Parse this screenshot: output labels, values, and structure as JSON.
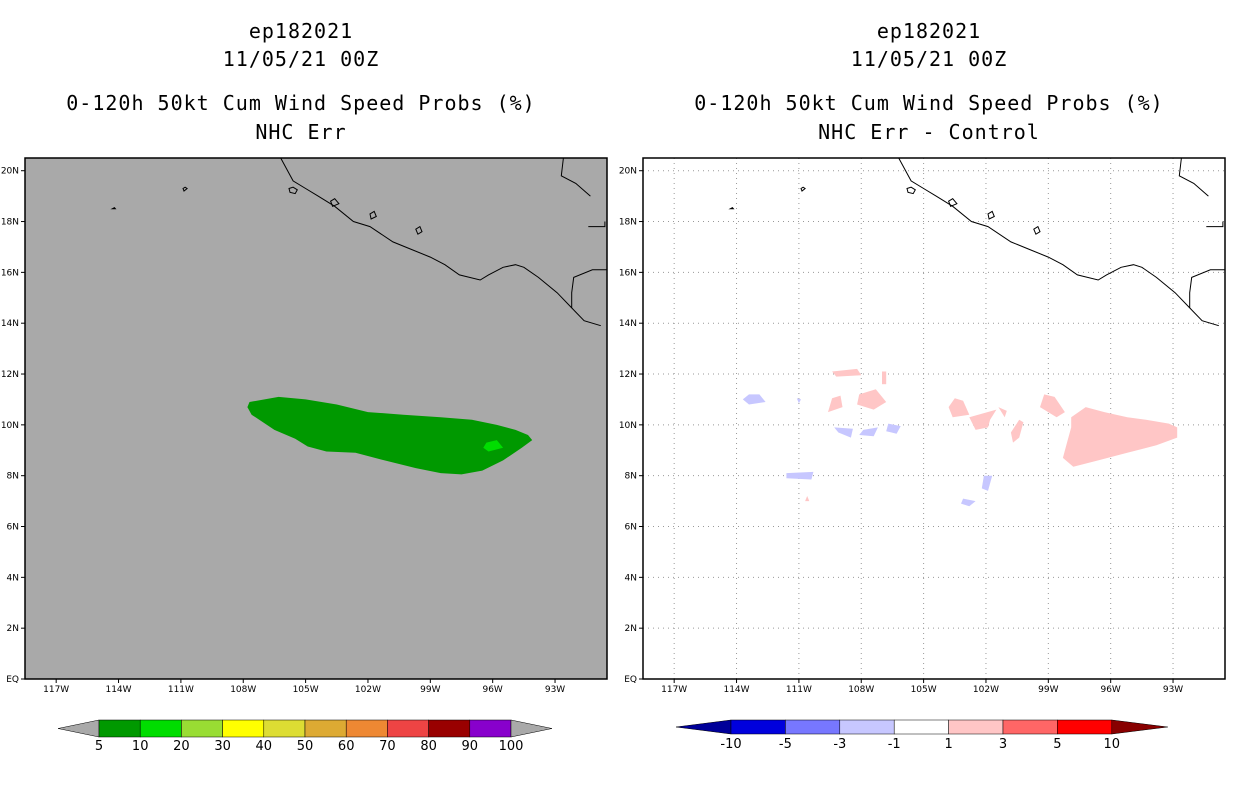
{
  "left_panel": {
    "storm_id": "ep182021",
    "datetime": "11/05/21 00Z",
    "product": "0-120h 50kt Cum Wind Speed Probs (%)",
    "subtitle": "NHC Err"
  },
  "right_panel": {
    "storm_id": "ep182021",
    "datetime": "11/05/21 00Z",
    "product": "0-120h 50kt Cum Wind Speed Probs (%)",
    "subtitle": "NHC Err - Control"
  },
  "map_extent": {
    "lon_west": -118.5,
    "lon_east": -90.5,
    "lat_south": 0,
    "lat_north": 20.5
  },
  "lat_ticks": [
    {
      "value": 0,
      "label": "EQ"
    },
    {
      "value": 2,
      "label": "2N"
    },
    {
      "value": 4,
      "label": "4N"
    },
    {
      "value": 6,
      "label": "6N"
    },
    {
      "value": 8,
      "label": "8N"
    },
    {
      "value": 10,
      "label": "10N"
    },
    {
      "value": 12,
      "label": "12N"
    },
    {
      "value": 14,
      "label": "14N"
    },
    {
      "value": 16,
      "label": "16N"
    },
    {
      "value": 18,
      "label": "18N"
    },
    {
      "value": 20,
      "label": "20N"
    }
  ],
  "lon_ticks": [
    {
      "value": -117,
      "label": "117W"
    },
    {
      "value": -114,
      "label": "114W"
    },
    {
      "value": -111,
      "label": "111W"
    },
    {
      "value": -108,
      "label": "108W"
    },
    {
      "value": -105,
      "label": "105W"
    },
    {
      "value": -102,
      "label": "102W"
    },
    {
      "value": -99,
      "label": "99W"
    },
    {
      "value": -96,
      "label": "96W"
    },
    {
      "value": -93,
      "label": "93W"
    }
  ],
  "colors": {
    "ocean_left": "#a9a9a9",
    "prob_5_10": "#009900",
    "prob_10_20": "#00dd00",
    "diff_pos_1_3": "#ffc6c6",
    "diff_neg_1_3": "#c7c7ff"
  },
  "left_colorbar": {
    "labels": [
      "5",
      "10",
      "20",
      "30",
      "40",
      "50",
      "60",
      "70",
      "80",
      "90",
      "100"
    ],
    "colors": [
      "#009900",
      "#00dd00",
      "#99dd33",
      "#ffff00",
      "#dddd33",
      "#ddaa33",
      "#ee8833",
      "#ee4444",
      "#990000",
      "#8800cc"
    ],
    "end_color": "#a9a9a9"
  },
  "right_colorbar": {
    "labels": [
      "-10",
      "-5",
      "-3",
      "-1",
      "1",
      "3",
      "5",
      "10"
    ],
    "colors": [
      "#0000dd",
      "#7777ff",
      "#c7c7ff",
      "#ffffff",
      "#ffc6c6",
      "#ff6666",
      "#ff0000"
    ],
    "low_color": "#000099",
    "high_color": "#880000"
  },
  "chart_data": {
    "type": "map",
    "variable": "0-120h 50kt cumulative wind speed probability (%)",
    "left_regions": [
      {
        "category": "5-10%",
        "color_key": "prob_5_10",
        "outline": [
          [
            -107.7,
            10.9
          ],
          [
            -106.3,
            11.1
          ],
          [
            -105,
            11
          ],
          [
            -103.5,
            10.8
          ],
          [
            -102,
            10.5
          ],
          [
            -100.3,
            10.4
          ],
          [
            -98.5,
            10.3
          ],
          [
            -97,
            10.2
          ],
          [
            -95.8,
            10
          ],
          [
            -94.9,
            9.8
          ],
          [
            -94.3,
            9.6
          ],
          [
            -94.1,
            9.4
          ],
          [
            -94.6,
            9.1
          ],
          [
            -95.5,
            8.6
          ],
          [
            -96.5,
            8.2
          ],
          [
            -97.5,
            8.05
          ],
          [
            -98.5,
            8.1
          ],
          [
            -99.7,
            8.3
          ],
          [
            -101.2,
            8.6
          ],
          [
            -102.6,
            8.9
          ],
          [
            -104,
            8.95
          ],
          [
            -104.9,
            9.15
          ],
          [
            -105.5,
            9.45
          ],
          [
            -106.5,
            9.8
          ],
          [
            -107.6,
            10.4
          ],
          [
            -107.8,
            10.7
          ]
        ]
      },
      {
        "category": "10-20%",
        "color_key": "prob_10_20",
        "outline": [
          [
            -96.3,
            9.3
          ],
          [
            -95.8,
            9.4
          ],
          [
            -95.5,
            9.1
          ],
          [
            -96.2,
            8.95
          ],
          [
            -96.45,
            9.1
          ]
        ]
      }
    ],
    "right_regions": [
      {
        "category": "+1 to +3",
        "color_key": "diff_pos_1_3",
        "outline": [
          [
            -109.4,
            12.1
          ],
          [
            -108.2,
            12.2
          ],
          [
            -108,
            11.95
          ],
          [
            -109.2,
            11.9
          ]
        ]
      },
      {
        "category": "+1 to +3",
        "color_key": "diff_pos_1_3",
        "outline": [
          [
            -107,
            12.1
          ],
          [
            -106.8,
            12.1
          ],
          [
            -106.8,
            11.6
          ],
          [
            -107,
            11.6
          ]
        ]
      },
      {
        "category": "+1 to +3",
        "color_key": "diff_pos_1_3",
        "outline": [
          [
            -108.1,
            11.2
          ],
          [
            -107.3,
            11.4
          ],
          [
            -106.8,
            10.9
          ],
          [
            -107.4,
            10.6
          ],
          [
            -108.2,
            10.8
          ]
        ]
      },
      {
        "category": "+1 to +3",
        "color_key": "diff_pos_1_3",
        "outline": [
          [
            -109.4,
            11.05
          ],
          [
            -109,
            11.15
          ],
          [
            -108.9,
            10.7
          ],
          [
            -109.6,
            10.5
          ]
        ]
      },
      {
        "category": "+1 to +3",
        "color_key": "diff_pos_1_3",
        "outline": [
          [
            -103.5,
            11.05
          ],
          [
            -103.1,
            10.95
          ],
          [
            -102.8,
            10.4
          ],
          [
            -103.6,
            10.3
          ],
          [
            -103.8,
            10.7
          ]
        ]
      },
      {
        "category": "+1 to +3",
        "color_key": "diff_pos_1_3",
        "outline": [
          [
            -101.8,
            10.2
          ],
          [
            -101.5,
            10.6
          ],
          [
            -102.8,
            10.3
          ],
          [
            -102.5,
            9.8
          ],
          [
            -101.9,
            9.9
          ]
        ]
      },
      {
        "category": "+1 to +3",
        "color_key": "diff_pos_1_3",
        "outline": [
          [
            -101.4,
            10.7
          ],
          [
            -101,
            10.55
          ],
          [
            -101.1,
            10.3
          ]
        ]
      },
      {
        "category": "+1 to +3",
        "color_key": "diff_pos_1_3",
        "outline": [
          [
            -100.7,
            9.3
          ],
          [
            -100.4,
            9.5
          ],
          [
            -100.2,
            10.1
          ],
          [
            -100.4,
            10.2
          ],
          [
            -100.8,
            9.7
          ]
        ]
      },
      {
        "category": "+1 to +3",
        "color_key": "diff_pos_1_3",
        "outline": [
          [
            -99.2,
            11.2
          ],
          [
            -98.7,
            11.1
          ],
          [
            -98.2,
            10.5
          ],
          [
            -98.6,
            10.3
          ],
          [
            -99.4,
            10.7
          ]
        ]
      },
      {
        "category": "+1 to +3",
        "color_key": "diff_pos_1_3",
        "outline": [
          [
            -97.9,
            10.3
          ],
          [
            -97.2,
            10.7
          ],
          [
            -96.3,
            10.5
          ],
          [
            -95.2,
            10.3
          ],
          [
            -94.3,
            10.2
          ],
          [
            -93.2,
            10.05
          ],
          [
            -92.8,
            9.9
          ],
          [
            -92.8,
            9.5
          ],
          [
            -93.8,
            9.2
          ],
          [
            -95.2,
            8.9
          ],
          [
            -96.6,
            8.6
          ],
          [
            -97.8,
            8.35
          ],
          [
            -98.3,
            8.7
          ],
          [
            -98.1,
            9.3
          ],
          [
            -97.9,
            9.9
          ]
        ]
      },
      {
        "category": "+1 to +3",
        "color_key": "diff_pos_1_3",
        "outline": [
          [
            -110.6,
            7.2
          ],
          [
            -110.5,
            7
          ],
          [
            -110.7,
            7
          ]
        ]
      },
      {
        "category": "-1 to -3",
        "color_key": "diff_neg_1_3",
        "outline": [
          [
            -113.4,
            11.2
          ],
          [
            -112.9,
            11.2
          ],
          [
            -112.6,
            10.9
          ],
          [
            -113.4,
            10.8
          ],
          [
            -113.7,
            11
          ]
        ]
      },
      {
        "category": "-1 to -3",
        "color_key": "diff_neg_1_3",
        "outline": [
          [
            -111.1,
            11.05
          ],
          [
            -110.9,
            11
          ],
          [
            -111,
            10.85
          ]
        ]
      },
      {
        "category": "-1 to -3",
        "color_key": "diff_neg_1_3",
        "outline": [
          [
            -109.5,
            10
          ]
        ],
        "note": "small"
      },
      {
        "category": "-1 to -3",
        "color_key": "diff_neg_1_3",
        "outline": [
          [
            -109.3,
            9.9
          ],
          [
            -108.4,
            9.85
          ],
          [
            -108.5,
            9.5
          ],
          [
            -109.1,
            9.7
          ]
        ]
      },
      {
        "category": "-1 to -3",
        "color_key": "diff_neg_1_3",
        "outline": [
          [
            -107.9,
            9.8
          ],
          [
            -107.2,
            9.9
          ],
          [
            -107.4,
            9.55
          ],
          [
            -108.1,
            9.6
          ]
        ]
      },
      {
        "category": "-1 to -3",
        "color_key": "diff_neg_1_3",
        "outline": [
          [
            -106.7,
            10.05
          ],
          [
            -106.1,
            9.95
          ],
          [
            -106.3,
            9.65
          ],
          [
            -106.8,
            9.75
          ]
        ]
      },
      {
        "category": "-1 to -3",
        "color_key": "diff_neg_1_3",
        "outline": [
          [
            -111.6,
            8.1
          ],
          [
            -110.3,
            8.15
          ],
          [
            -110.4,
            7.85
          ],
          [
            -111.6,
            7.9
          ]
        ]
      },
      {
        "category": "-1 to -3",
        "color_key": "diff_neg_1_3",
        "outline": [
          [
            -102.1,
            8
          ],
          [
            -101.7,
            8
          ],
          [
            -101.9,
            7.4
          ],
          [
            -102.2,
            7.5
          ]
        ]
      },
      {
        "category": "-1 to -3",
        "color_key": "diff_neg_1_3",
        "outline": [
          [
            -103.1,
            7.1
          ],
          [
            -102.5,
            7
          ],
          [
            -102.8,
            6.8
          ],
          [
            -103.2,
            6.9
          ]
        ]
      }
    ],
    "coastline": [
      [
        -106.2,
        20.5
      ],
      [
        -105.6,
        19.6
      ],
      [
        -105,
        19.3
      ],
      [
        -104.4,
        19
      ],
      [
        -103.6,
        18.6
      ],
      [
        -102.7,
        18
      ],
      [
        -101.9,
        17.8
      ],
      [
        -100.8,
        17.2
      ],
      [
        -99.9,
        16.9
      ],
      [
        -99,
        16.6
      ],
      [
        -98.3,
        16.3
      ],
      [
        -97.6,
        15.9
      ],
      [
        -96.6,
        15.7
      ],
      [
        -96.2,
        15.9
      ],
      [
        -95.5,
        16.2
      ],
      [
        -94.9,
        16.3
      ],
      [
        -94.5,
        16.2
      ],
      [
        -93.8,
        15.8
      ],
      [
        -92.9,
        15.2
      ],
      [
        -92.2,
        14.6
      ],
      [
        -91.6,
        14.1
      ],
      [
        -90.8,
        13.9
      ]
    ],
    "borders": [
      [
        [
          -92.2,
          14.6
        ],
        [
          -92.2,
          15.2
        ],
        [
          -92.1,
          15.8
        ],
        [
          -91.2,
          16.1
        ],
        [
          -90.5,
          16.1
        ]
      ],
      [
        [
          -92.6,
          20.5
        ],
        [
          -92.7,
          19.8
        ],
        [
          -92,
          19.5
        ],
        [
          -91.3,
          19
        ]
      ],
      [
        [
          -91.4,
          17.8
        ],
        [
          -90.6,
          17.8
        ],
        [
          -90.6,
          18
        ]
      ]
    ],
    "islands": [
      [
        [
          -105.8,
          19.3
        ],
        [
          -105.6,
          19.35
        ],
        [
          -105.4,
          19.25
        ],
        [
          -105.5,
          19.1
        ],
        [
          -105.75,
          19.15
        ]
      ],
      [
        [
          -103.8,
          18.8
        ],
        [
          -103.6,
          18.9
        ],
        [
          -103.4,
          18.7
        ],
        [
          -103.7,
          18.6
        ]
      ],
      [
        [
          -101.9,
          18.3
        ],
        [
          -101.7,
          18.4
        ],
        [
          -101.6,
          18.2
        ],
        [
          -101.85,
          18.1
        ]
      ],
      [
        [
          -99.7,
          17.7
        ],
        [
          -99.5,
          17.8
        ],
        [
          -99.4,
          17.6
        ],
        [
          -99.6,
          17.5
        ]
      ],
      [
        [
          -110.9,
          19.3
        ],
        [
          -110.8,
          19.35
        ],
        [
          -110.7,
          19.3
        ],
        [
          -110.85,
          19.2
        ]
      ],
      [
        [
          -114.3,
          18.5
        ],
        [
          -114.2,
          18.55
        ],
        [
          -114.15,
          18.5
        ]
      ]
    ]
  }
}
